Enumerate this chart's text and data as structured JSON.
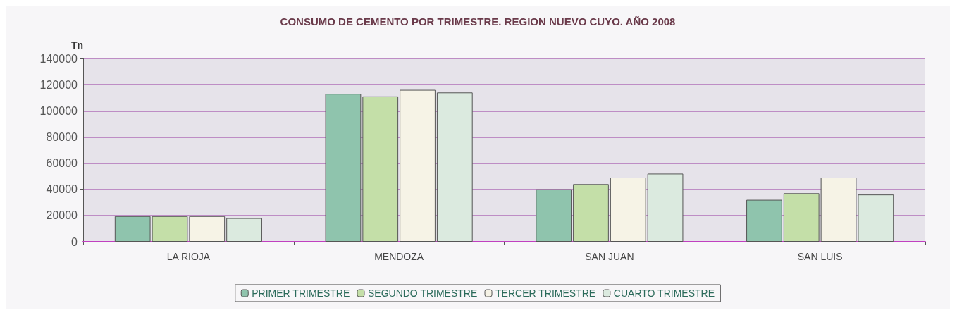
{
  "chart_data": {
    "type": "bar",
    "title": "CONSUMO DE CEMENTO POR TRIMESTRE. REGION NUEVO CUYO. AÑO 2008",
    "ylabel": "Tn",
    "categories": [
      "LA RIOJA",
      "MENDOZA",
      "SAN JUAN",
      "SAN LUIS"
    ],
    "series": [
      {
        "name": "PRIMER TRIMESTRE",
        "color": "#8fc4ad",
        "values": [
          19500,
          113000,
          40000,
          32000
        ]
      },
      {
        "name": "SEGUNDO TRIMESTRE",
        "color": "#c4dfa8",
        "values": [
          19500,
          111000,
          44000,
          37000
        ]
      },
      {
        "name": "TERCER TRIMESTRE",
        "color": "#f6f3e6",
        "values": [
          19500,
          116000,
          49000,
          49000
        ]
      },
      {
        "name": "CUARTO TRIMESTRE",
        "color": "#dbeadf",
        "values": [
          18000,
          114000,
          52000,
          36000
        ]
      }
    ],
    "ylim": [
      0,
      140000
    ],
    "yticks": [
      0,
      20000,
      40000,
      60000,
      80000,
      100000,
      120000,
      140000
    ],
    "grid": "y",
    "legend": "bottom"
  }
}
